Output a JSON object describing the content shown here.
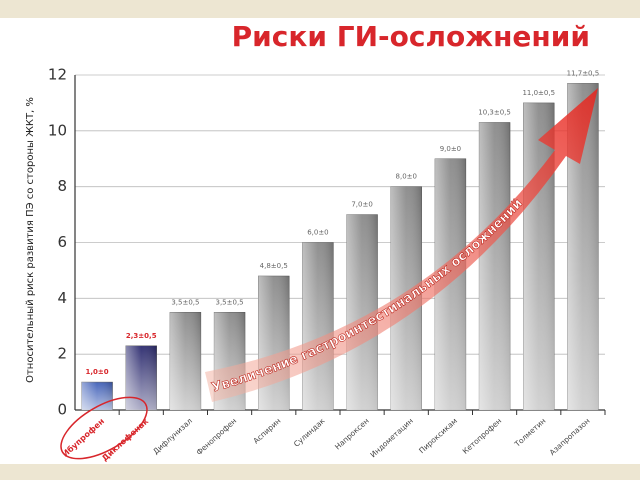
{
  "chart_data": {
    "type": "bar",
    "title": "Риски ГИ-осложнений",
    "y_label": "Относительный риск развития ПЭ со стороны ЖКТ, %",
    "annotation": "Увеличение гастроинтестинальных осложнений",
    "categories": [
      "Ибупрофен",
      "Диклофенак",
      "Дифлунизал",
      "Фенопрофен",
      "Аспирин",
      "Сулиндак",
      "Напроксен",
      "Индометацин",
      "Пироксикам",
      "Кетопрофен",
      "Толметин",
      "Азапропазон"
    ],
    "values": [
      1.0,
      2.3,
      3.5,
      3.5,
      4.8,
      6.0,
      7.0,
      8.0,
      9.0,
      10.3,
      11.0,
      11.7
    ],
    "value_labels": [
      "1,0±0",
      "2,3±0,5",
      "3,5±0,5",
      "3,5±0,5",
      "4,8±0,5",
      "6,0±0",
      "7,0±0",
      "8,0±0",
      "9,0±0",
      "10,3±0,5",
      "11,0±0,5",
      "11,7±0,5"
    ],
    "colors": [
      "#3f5fb8",
      "#2b2a6e",
      "#8a8a8a",
      "#8a8a8a",
      "#8a8a8a",
      "#8a8a8a",
      "#8a8a8a",
      "#8a8a8a",
      "#8a8a8a",
      "#8a8a8a",
      "#8a8a8a",
      "#8a8a8a"
    ],
    "ylim": [
      0,
      12
    ],
    "yticks": [
      0,
      2,
      4,
      6,
      8,
      10,
      12
    ],
    "grid": true
  }
}
